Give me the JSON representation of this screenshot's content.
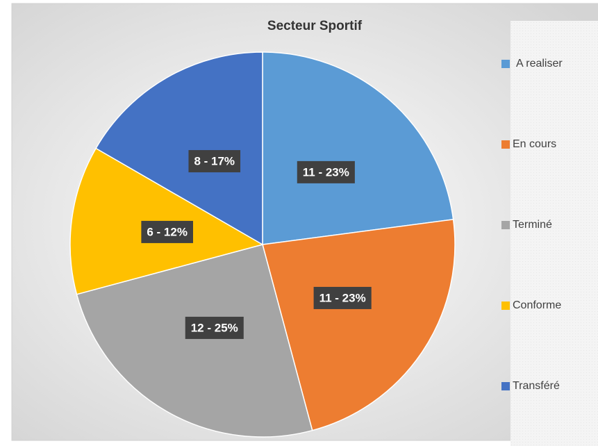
{
  "chart_data": {
    "type": "pie",
    "title": "Secteur Sportif",
    "categories": [
      "A realiser",
      "En cours",
      "Terminé",
      "Conforme",
      "Transféré"
    ],
    "values": [
      11,
      11,
      12,
      6,
      8
    ],
    "value_labels": [
      "11 - 23%",
      "11 - 23%",
      "12 - 25%",
      "6 - 12%",
      "8 - 17%"
    ],
    "colors": [
      "#5b9bd5",
      "#ed7d31",
      "#a5a5a5",
      "#ffc000",
      "#4472c4"
    ],
    "legend": "right"
  }
}
